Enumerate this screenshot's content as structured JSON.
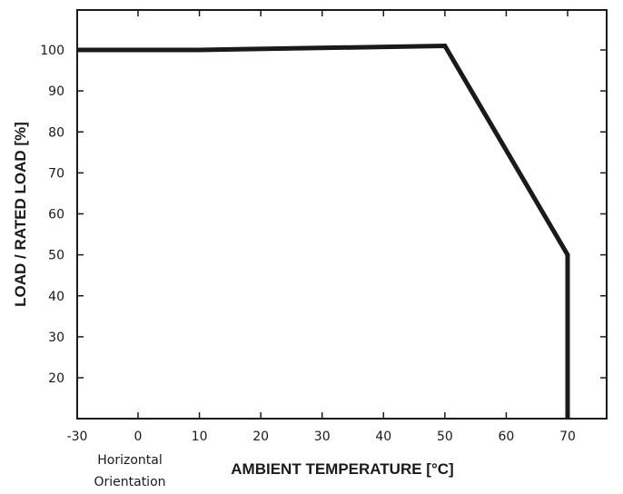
{
  "chart_data": {
    "type": "line",
    "title": "",
    "xlabel": "AMBIENT TEMPERATURE [°C]",
    "ylabel": "LOAD / RATED LOAD [%]",
    "xlim": [
      -30,
      70
    ],
    "ylim": [
      20,
      100
    ],
    "xticks": [
      -30,
      0,
      10,
      20,
      30,
      40,
      50,
      60,
      70
    ],
    "yticks": [
      20,
      30,
      40,
      50,
      60,
      70,
      80,
      90,
      100
    ],
    "grid": false,
    "series": [
      {
        "x": [
          -30,
          10,
          50,
          70,
          70
        ],
        "y": [
          100,
          100,
          101,
          50,
          10
        ]
      }
    ],
    "annotation": [
      "Horizontal",
      "Orientation"
    ],
    "line_color": "#1a1a1a"
  }
}
